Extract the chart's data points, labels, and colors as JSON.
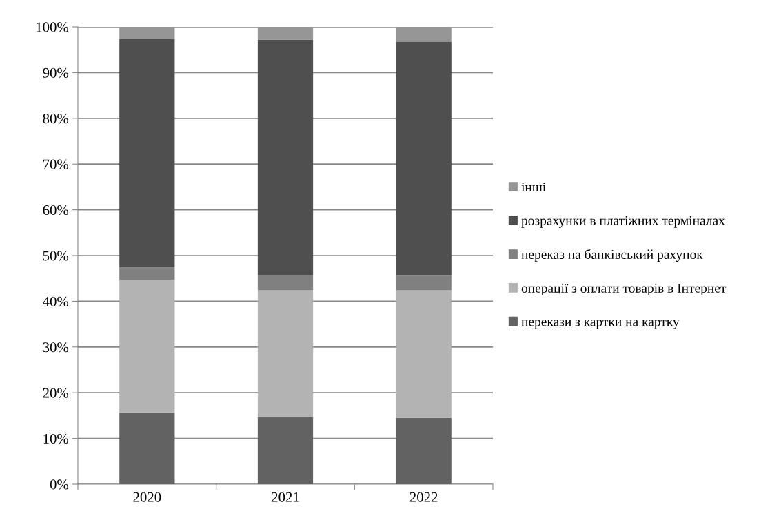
{
  "chart_data": {
    "type": "bar",
    "stacked": true,
    "categories": [
      "2020",
      "2021",
      "2022"
    ],
    "series": [
      {
        "name": "перекази з картки на картку",
        "color": "#626262",
        "values": [
          15.7,
          14.7,
          14.5
        ]
      },
      {
        "name": "операції з оплати товарів в Інтернет",
        "color": "#b3b3b3",
        "values": [
          29.0,
          27.7,
          27.9
        ]
      },
      {
        "name": "переказ на банківський рахунок",
        "color": "#808080",
        "values": [
          2.7,
          3.3,
          3.2
        ]
      },
      {
        "name": "розрахунки в платіжних терміналах",
        "color": "#4f4f4f",
        "values": [
          49.9,
          51.5,
          51.1
        ]
      },
      {
        "name": "інші",
        "color": "#969696",
        "values": [
          2.7,
          2.8,
          3.3
        ]
      }
    ],
    "ylim": [
      0,
      100
    ],
    "yticks": [
      {
        "value": 0,
        "label": "0%"
      },
      {
        "value": 10,
        "label": "10%"
      },
      {
        "value": 20,
        "label": "20%"
      },
      {
        "value": 30,
        "label": "30%"
      },
      {
        "value": 40,
        "label": "40%"
      },
      {
        "value": 50,
        "label": "50%"
      },
      {
        "value": 60,
        "label": "60%"
      },
      {
        "value": 70,
        "label": "70%"
      },
      {
        "value": 80,
        "label": "80%"
      },
      {
        "value": 90,
        "label": "90%"
      },
      {
        "value": 100,
        "label": "100%"
      }
    ],
    "grid": "y",
    "legend": "right"
  }
}
